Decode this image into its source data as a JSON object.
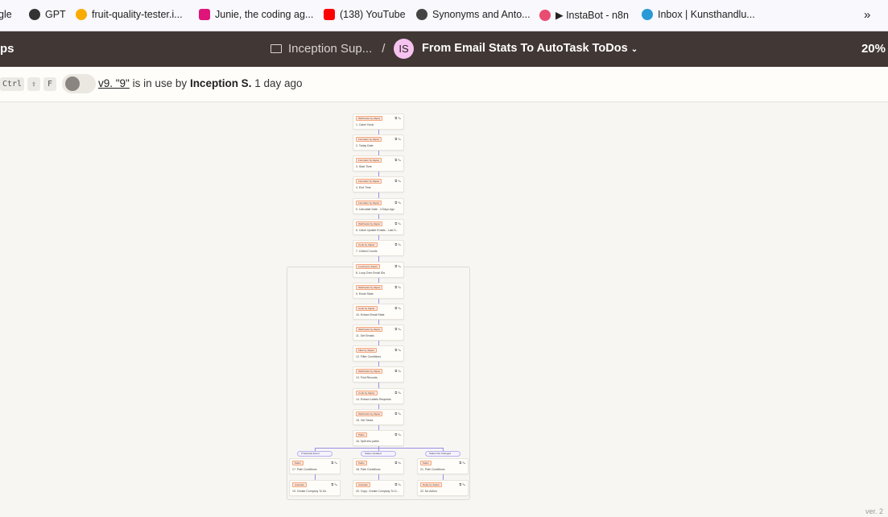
{
  "bookmarks": [
    {
      "label": "gle",
      "icon": "google-icon"
    },
    {
      "label": "GPT",
      "icon": "openai-icon"
    },
    {
      "label": "fruit-quality-tester.i...",
      "icon": "colab-icon"
    },
    {
      "label": "Junie, the coding ag...",
      "icon": "jetbrains-icon"
    },
    {
      "label": "(138) YouTube",
      "icon": "youtube-icon"
    },
    {
      "label": "Synonyms and Anto...",
      "icon": "globe-icon"
    },
    {
      "label": "▶ InstaBot - n8n",
      "icon": "n8n-icon"
    },
    {
      "label": "Inbox | Kunsthandlu...",
      "icon": "mail-icon"
    }
  ],
  "more_bookmarks": "»",
  "header": {
    "app": "ps",
    "folder": "Inception Sup...",
    "separator": "/",
    "avatar": "IS",
    "title": "From Email Stats To AutoTask ToDos",
    "zoom": "20%"
  },
  "subbar": {
    "keys": [
      "Ctrl",
      "⇧",
      "F"
    ],
    "version": "v9. \"9\"",
    "in_use": "is in use by",
    "user": "Inception S.",
    "time": "1 day ago"
  },
  "colors": {
    "header_bg": "#413735",
    "accent": "#9a8ee8",
    "app_badge": "#f3a67e"
  },
  "nodes": [
    {
      "app": "Webhooks by Zapier",
      "step": "1. Catch Hook"
    },
    {
      "app": "Formatter by Zapier",
      "step": "2. Today Date"
    },
    {
      "app": "Formatter by Zapier",
      "step": "3. Start Time"
    },
    {
      "app": "Formatter by Zapier",
      "step": "4. End Time"
    },
    {
      "app": "Formatter by Zapier",
      "step": "5. Calculate Date - 3 Days Ago"
    },
    {
      "app": "Webhooks by Zapier",
      "step": "6. Catch Update Emails - Last 3..."
    },
    {
      "app": "Code by Zapier",
      "step": "7. Collect Counts"
    },
    {
      "app": "Looping by Zapier",
      "step": "8. Loop Over Email IDs"
    },
    {
      "app": "Webhooks by Zapier",
      "step": "9. Email Stats"
    },
    {
      "app": "Code by Zapier",
      "step": "10. Extract Email Stats"
    },
    {
      "app": "Webhooks by Zapier",
      "step": "11. Get Emails"
    },
    {
      "app": "Filter by Zapier",
      "step": "12. Filter Conditions"
    },
    {
      "app": "Webhooks by Zapier",
      "step": "13. Find Records"
    },
    {
      "app": "Code by Zapier",
      "step": "14. Extract Labels Requests"
    },
    {
      "app": "Webhooks by Zapier",
      "step": "15. Get Tasks"
    },
    {
      "app": "Paths",
      "step": "16. Split into paths"
    }
  ],
  "branches": [
    {
      "pill": "If Selected Event",
      "path": {
        "app": "Paths",
        "step": "17. Path Conditions"
      },
      "action": {
        "app": "Autotask",
        "step": "19. Create Company To Do"
      }
    },
    {
      "pill": "Status Updated",
      "path": {
        "app": "Paths",
        "step": "18. Path Conditions"
      },
      "action": {
        "app": "Autotask",
        "step": "20. Copy: Create Company To D..."
      }
    },
    {
      "pill": "Status Not Changed",
      "path": {
        "app": "Paths",
        "step": "21. Path Conditions"
      },
      "action": {
        "app": "Delay by Zapier",
        "step": "22. No Action"
      }
    }
  ],
  "footer": {
    "version": "ver. 2"
  }
}
